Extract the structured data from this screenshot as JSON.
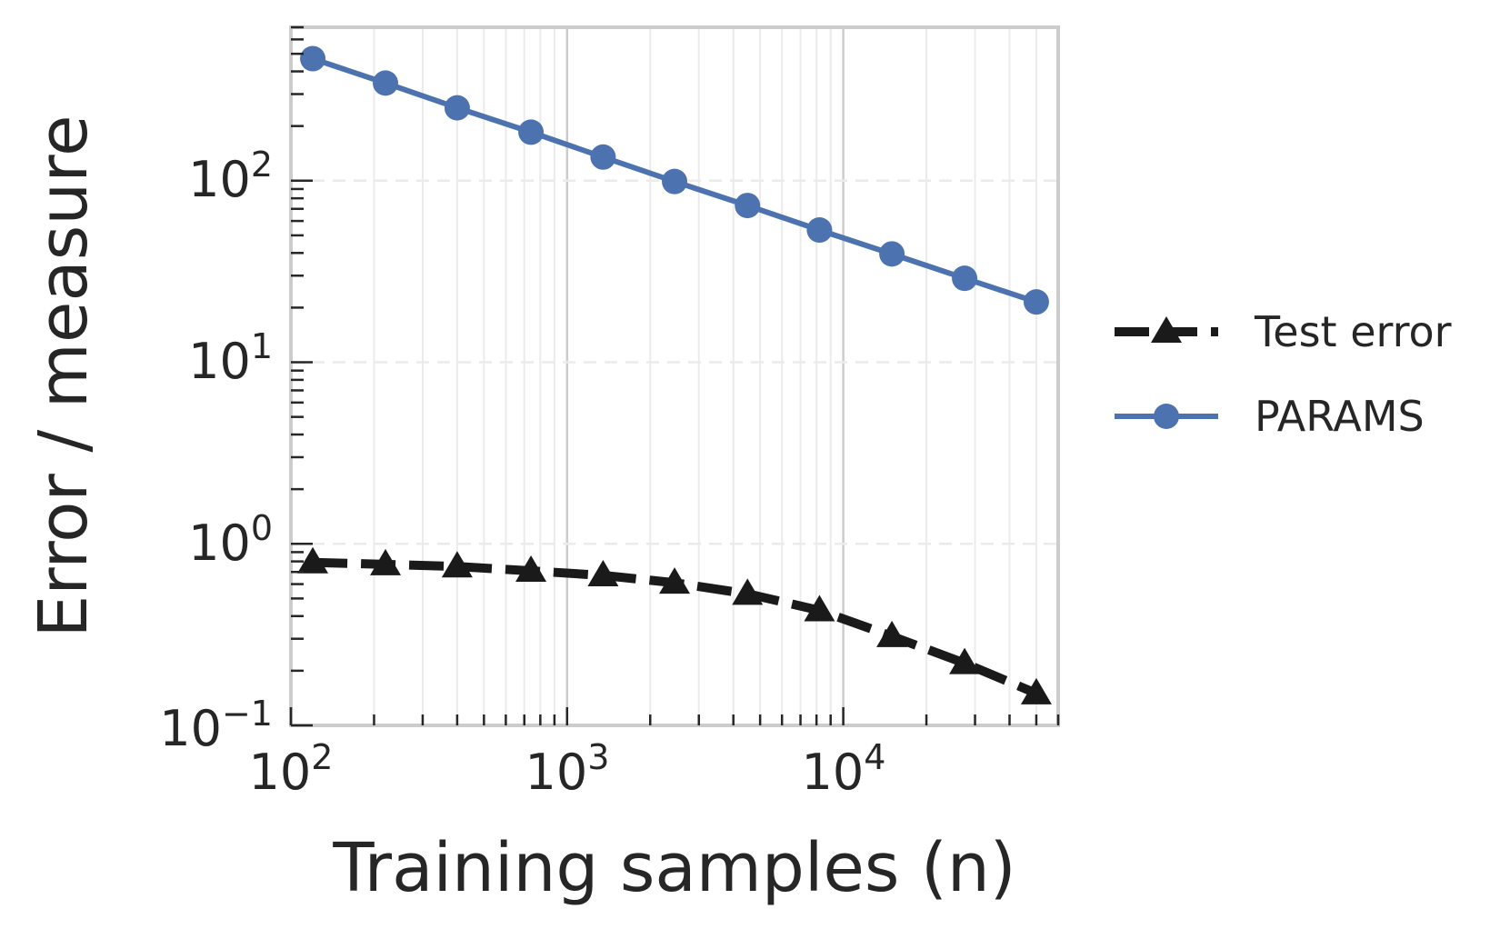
{
  "chart_data": {
    "type": "line",
    "title": "",
    "xlabel": "Training samples (n)",
    "ylabel": "Error / measure",
    "xscale": "log",
    "yscale": "log",
    "xlim": [
      100,
      60000
    ],
    "ylim": [
      0.1,
      700
    ],
    "x_ticks": [
      {
        "base": "10",
        "exp": "2"
      },
      {
        "base": "10",
        "exp": "3"
      },
      {
        "base": "10",
        "exp": "4"
      }
    ],
    "y_ticks": [
      {
        "base": "10",
        "exp": "−1"
      },
      {
        "base": "10",
        "exp": "0"
      },
      {
        "base": "10",
        "exp": "1"
      },
      {
        "base": "10",
        "exp": "2"
      }
    ],
    "grid": true,
    "legend_position": "right-outside",
    "x": [
      120,
      220,
      400,
      740,
      1350,
      2450,
      4500,
      8200,
      15000,
      27500,
      50000
    ],
    "series": [
      {
        "name": "Test error",
        "color": "#1a1a1a",
        "line_style": "dashed",
        "marker": "triangle",
        "values": [
          0.79,
          0.77,
          0.75,
          0.71,
          0.67,
          0.61,
          0.53,
          0.43,
          0.31,
          0.22,
          0.15
        ]
      },
      {
        "name": "PARAMS",
        "color": "#4c72b0",
        "line_style": "solid",
        "marker": "circle",
        "values": [
          470,
          345,
          252,
          185,
          135,
          99,
          73,
          53.5,
          39.5,
          29,
          21.5
        ]
      }
    ]
  }
}
